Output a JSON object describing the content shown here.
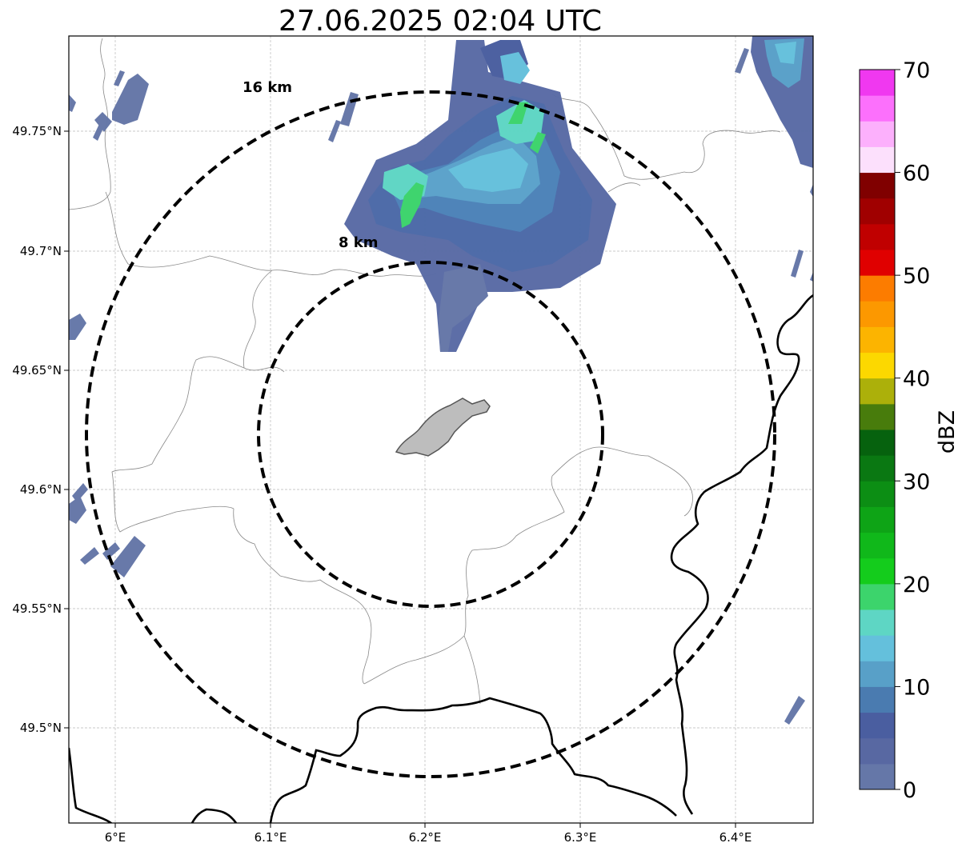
{
  "title": "27.06.2025 02:04 UTC",
  "x_ticks": [
    "6°E",
    "6.1°E",
    "6.2°E",
    "6.3°E",
    "6.4°E"
  ],
  "y_ticks": [
    "49.75°N",
    "49.7°N",
    "49.65°N",
    "49.6°N",
    "49.55°N",
    "49.5°N"
  ],
  "rings": [
    {
      "label": "16 km",
      "radius_km": 16
    },
    {
      "label": "8 km",
      "radius_km": 8
    }
  ],
  "colorbar": {
    "label": "dBZ",
    "ticks": [
      "0",
      "10",
      "20",
      "30",
      "40",
      "50",
      "60",
      "70"
    ],
    "colors": [
      "#6577a8",
      "#5868a2",
      "#4a5ea0",
      "#4a7bb0",
      "#58a0c8",
      "#64c0dc",
      "#5ed6c4",
      "#3cd46c",
      "#14cc1c",
      "#10b81a",
      "#0ea416",
      "#0c8e14",
      "#0a7812",
      "#06620e",
      "#487c0c",
      "#acb00a",
      "#fcd800",
      "#fcb400",
      "#fc9800",
      "#fc7c00",
      "#e00000",
      "#c00000",
      "#a00000",
      "#800000",
      "#fce0fc",
      "#fcb0fc",
      "#fc70fc",
      "#f038f0"
    ]
  }
}
